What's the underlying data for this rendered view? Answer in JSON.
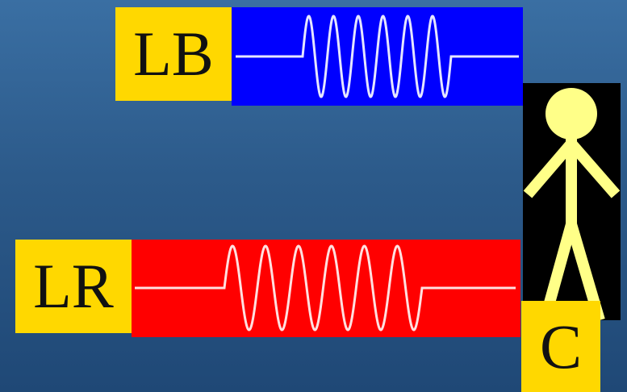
{
  "diagram": {
    "blue_emitter": {
      "label": "LB",
      "wave_color": "#0000ff",
      "label_bg": "#ffd800"
    },
    "red_emitter": {
      "label": "LR",
      "wave_color": "#ff0000",
      "label_bg": "#ffd800"
    },
    "observer": {
      "label": "C",
      "figure_color": "#ffff88",
      "panel_color": "#000000"
    },
    "colors": {
      "background_top": "#3a6fa3",
      "background_bottom": "#1f4876",
      "wave_stroke": "#ffffff"
    },
    "icons": [
      "sine-wave-icon",
      "stick-figure-icon"
    ]
  }
}
